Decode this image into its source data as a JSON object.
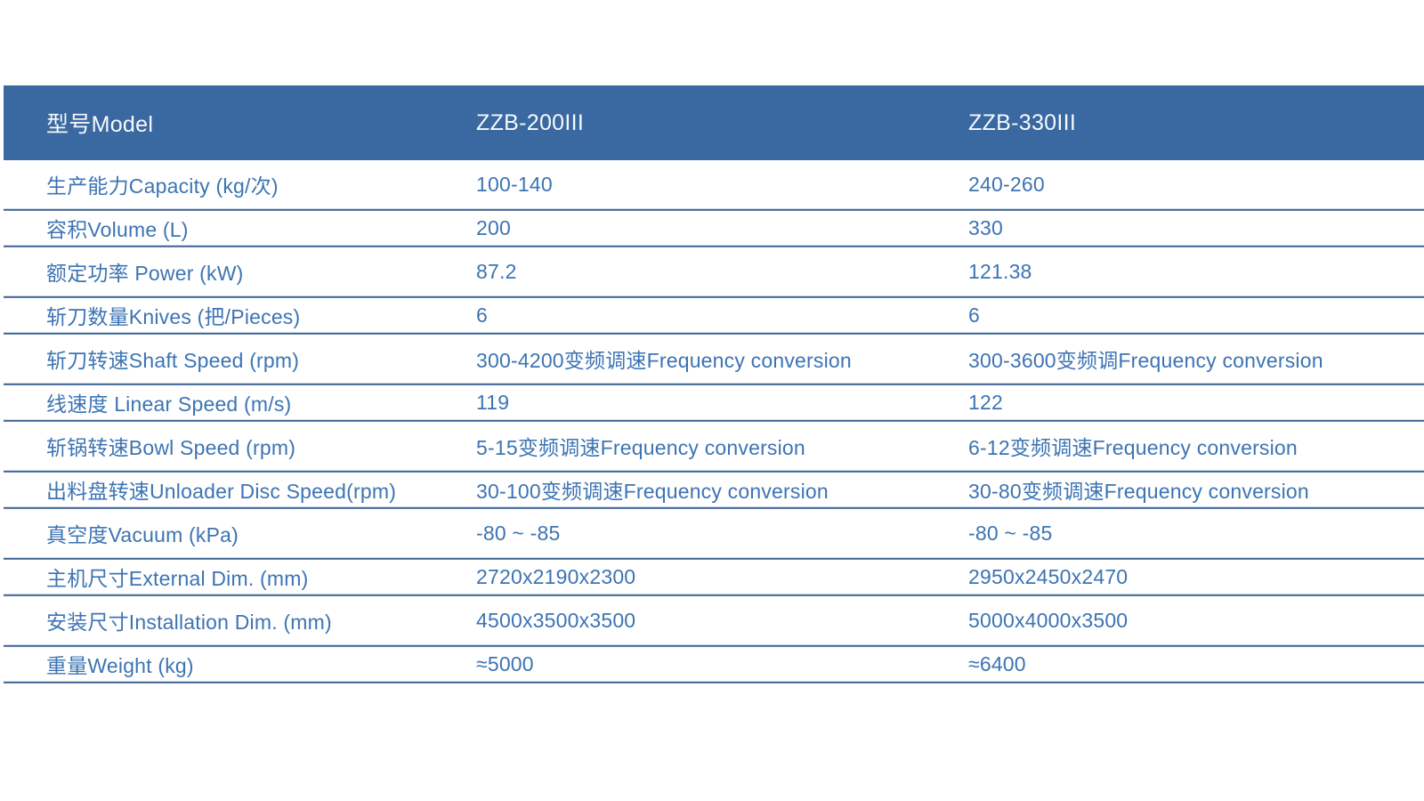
{
  "table": {
    "header": {
      "label": "型号Model",
      "col1": "ZZB-200III",
      "col2": "ZZB-330III"
    },
    "rows": [
      {
        "label": "生产能力Capacity (kg/次)",
        "col1": "100-140",
        "col2": "240-260"
      },
      {
        "label": "容积Volume (L)",
        "col1": "200",
        "col2": "330"
      },
      {
        "label": "额定功率 Power (kW)",
        "col1": "87.2",
        "col2": "121.38"
      },
      {
        "label": "斩刀数量Knives (把/Pieces)",
        "col1": "6",
        "col2": "6"
      },
      {
        "label": "斩刀转速Shaft Speed (rpm)",
        "col1": "300-4200变频调速Frequency conversion",
        "col2": "300-3600变频调Frequency conversion"
      },
      {
        "label": "线速度 Linear Speed (m/s)",
        "col1": "119",
        "col2": "122"
      },
      {
        "label": "斩锅转速Bowl Speed (rpm)",
        "col1": "5-15变频调速Frequency conversion",
        "col2": "6-12变频调速Frequency conversion"
      },
      {
        "label": "出料盘转速Unloader Disc Speed(rpm)",
        "col1": "30-100变频调速Frequency conversion",
        "col2": "30-80变频调速Frequency conversion"
      },
      {
        "label": "真空度Vacuum (kPa)",
        "col1": "-80 ~ -85",
        "col2": "-80 ~ -85"
      },
      {
        "label": "主机尺寸External Dim. (mm)",
        "col1": "2720x2190x2300",
        "col2": "2950x2450x2470"
      },
      {
        "label": "安装尺寸Installation Dim. (mm)",
        "col1": "4500x3500x3500",
        "col2": "5000x4000x3500"
      },
      {
        "label": "重量Weight (kg)",
        "col1": "≈5000",
        "col2": "≈6400"
      }
    ],
    "colors": {
      "header_bg": "#3a68a1",
      "header_text": "#f6f9fc",
      "body_text": "#3d74b3",
      "divider_light": "#cdd8e6",
      "divider_dark": "#3e6191",
      "divider_mid": "#8ba6c7"
    }
  }
}
